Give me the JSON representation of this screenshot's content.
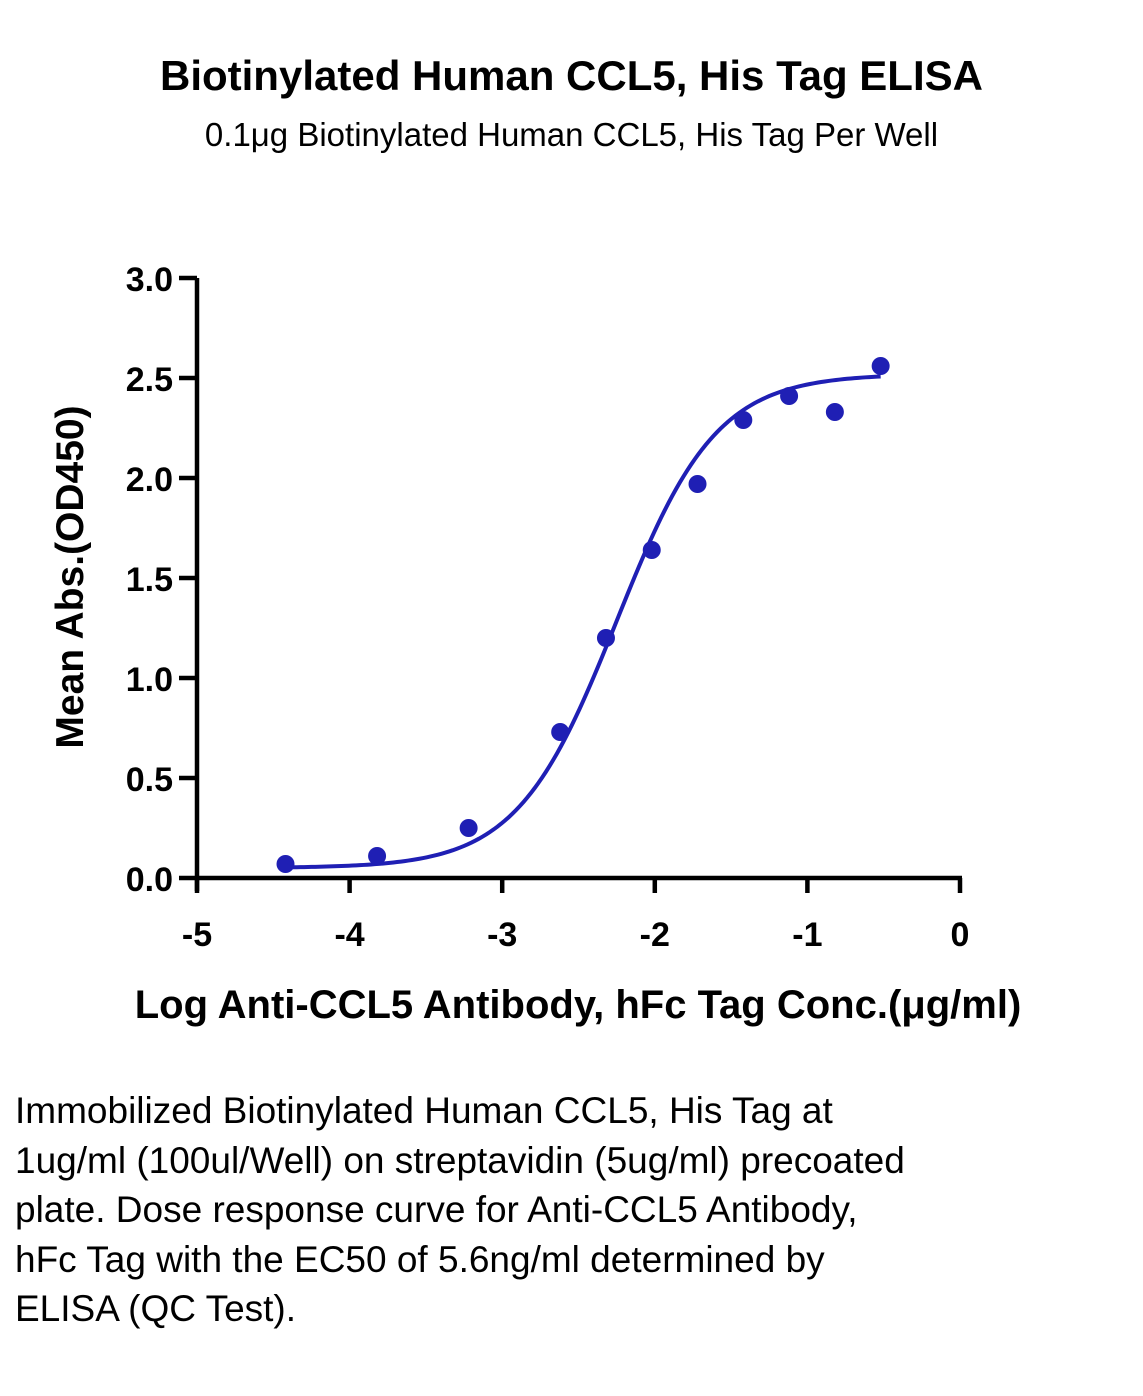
{
  "header": {
    "title": "Biotinylated Human CCL5, His Tag ELISA",
    "subtitle": "0.1μg Biotinylated Human CCL5, His Tag Per Well"
  },
  "chart_data": {
    "type": "scatter",
    "title": "Biotinylated Human CCL5, His Tag ELISA",
    "subtitle": "0.1μg Biotinylated Human CCL5, His Tag Per Well",
    "xlabel": "Log Anti-CCL5 Antibody, hFc Tag Conc.(μg/ml)",
    "ylabel": "Mean Abs.(OD450)",
    "xlim": [
      -5,
      0
    ],
    "ylim": [
      0,
      3.0
    ],
    "xticks": [
      "-5",
      "-4",
      "-3",
      "-2",
      "-1",
      "0"
    ],
    "yticks": [
      "0.0",
      "0.5",
      "1.0",
      "1.5",
      "2.0",
      "2.5",
      "3.0"
    ],
    "grid": false,
    "legend": "none",
    "series": [
      {
        "color": "#1f1fb4",
        "points": [
          {
            "x": -4.42,
            "y": 0.07
          },
          {
            "x": -3.82,
            "y": 0.11
          },
          {
            "x": -3.22,
            "y": 0.25
          },
          {
            "x": -2.62,
            "y": 0.73
          },
          {
            "x": -2.32,
            "y": 1.2
          },
          {
            "x": -2.02,
            "y": 1.64
          },
          {
            "x": -1.72,
            "y": 1.97
          },
          {
            "x": -1.42,
            "y": 2.29
          },
          {
            "x": -1.12,
            "y": 2.41
          },
          {
            "x": -0.82,
            "y": 2.33
          },
          {
            "x": -0.52,
            "y": 2.56
          }
        ],
        "fit": {
          "model": "4PL",
          "bottom": 0.05,
          "top": 2.52,
          "logEC50": -2.25,
          "hill": 1.33,
          "x_range": [
            -4.42,
            -0.52
          ]
        }
      }
    ]
  },
  "caption": "Immobilized Biotinylated Human CCL5, His Tag at 1ug/ml (100ul/Well) on streptavidin (5ug/ml) precoated plate. Dose response curve for Anti-CCL5 Antibody, hFc Tag with the EC50 of 5.6ng/ml determined by ELISA (QC Test)."
}
